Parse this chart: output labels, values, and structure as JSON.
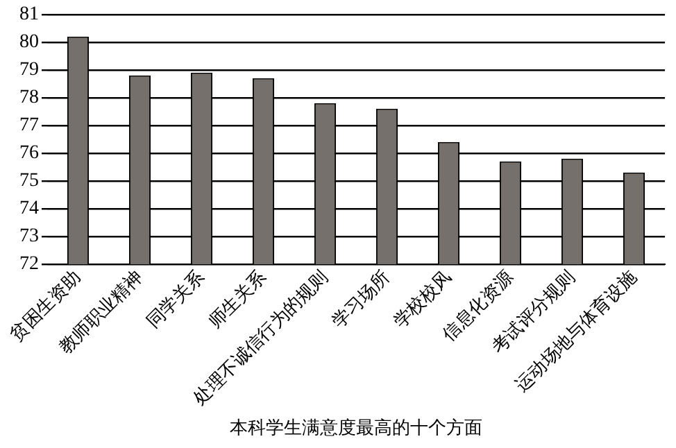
{
  "chart_data": {
    "type": "bar",
    "xlabel": "本科学生满意度最高的十个方面",
    "categories": [
      "贫困生资助",
      "教师职业精神",
      "同学关系",
      "师生关系",
      "处理不诚信行为的规则",
      "学习场所",
      "学校校风",
      "信息化资源",
      "考试评分规则",
      "运动场地与体育设施"
    ],
    "values": [
      80.2,
      78.8,
      78.9,
      78.7,
      77.8,
      77.6,
      76.4,
      75.7,
      75.8,
      75.3
    ],
    "color": "#75706b",
    "ylim": [
      72,
      81
    ],
    "yticks": [
      72,
      73,
      74,
      75,
      76,
      77,
      78,
      79,
      80,
      81
    ],
    "grid": "y",
    "legend": false
  }
}
